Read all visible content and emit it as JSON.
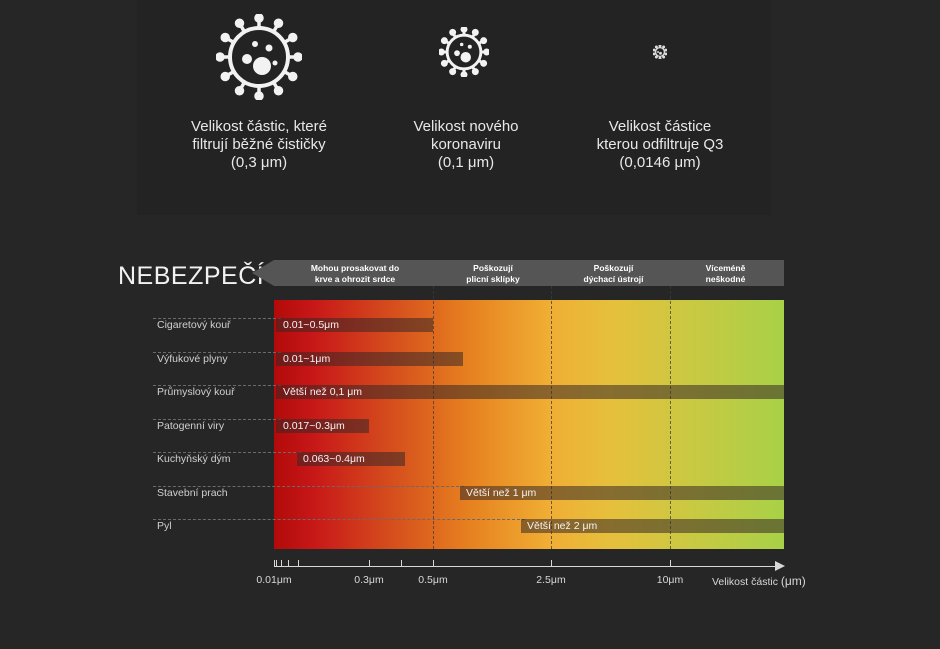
{
  "colors": {
    "background": "#262626",
    "gradient_start": "#b20a0a",
    "gradient_mid": "#f0ae34",
    "gradient_end": "#a8d147",
    "arrow_band": "#555555"
  },
  "icons": [
    "virus-large-icon",
    "virus-medium-icon",
    "virus-small-icon"
  ],
  "top_items": [
    {
      "lines": [
        "Velikost částic, které",
        "filtrují běžné čističky",
        "(0,3 μm)"
      ]
    },
    {
      "lines": [
        "Velikost nového",
        "koronaviru",
        "(0,1 μm)"
      ]
    },
    {
      "lines": [
        "Velikost částice",
        "kterou odfiltruje Q3",
        "(0,0146 μm)"
      ]
    }
  ],
  "danger_label": "NEBEZPEČÍ",
  "bands": [
    {
      "lines": [
        "Mohou prosakovat do",
        "krve a ohrozit srdce"
      ]
    },
    {
      "lines": [
        "Poškozují",
        "plicní sklípky"
      ]
    },
    {
      "lines": [
        "Poškozují",
        "dýchací ústrojí"
      ]
    },
    {
      "lines": [
        "Víceméně",
        "neškodné"
      ]
    }
  ],
  "chart_data": {
    "type": "bar",
    "orientation": "horizontal-range",
    "xlabel": "Velikost částic",
    "xunit": "(μm)",
    "x_ticks": [
      "0.01μm",
      "0.3μm",
      "0.5μm",
      "2.5μm",
      "10μm"
    ],
    "categories": [
      "Cigaretový kouř",
      "Výfukové plyny",
      "Průmyslový kouř",
      "Patogenní viry",
      "Kuchyňský dým",
      "Stavební prach",
      "Pyl"
    ],
    "ranges": [
      {
        "label": "0.01~0.5μm",
        "from": 0.01,
        "to": 0.5
      },
      {
        "label": "0.01~1μm",
        "from": 0.01,
        "to": 1
      },
      {
        "label": "Větší než 0,1 μm",
        "from": 0.1,
        "to": null
      },
      {
        "label": "0.017~0.3μm",
        "from": 0.017,
        "to": 0.3
      },
      {
        "label": "0.063~0.4μm",
        "from": 0.063,
        "to": 0.4
      },
      {
        "label": "Větší než 1 μm",
        "from": 1,
        "to": null
      },
      {
        "label": "Větší než 2 μm",
        "from": 2,
        "to": null
      }
    ]
  }
}
